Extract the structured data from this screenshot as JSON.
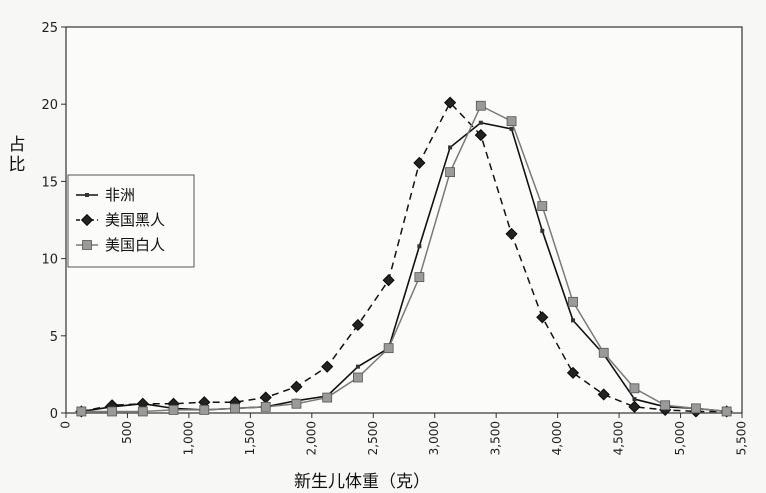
{
  "chart_data": {
    "type": "line",
    "title": "",
    "xlabel": "新生儿体重（克）",
    "ylabel": "占比",
    "xlim": [
      0,
      5500
    ],
    "ylim": [
      0,
      25
    ],
    "x_ticks": [
      0,
      500,
      1000,
      1500,
      2000,
      2500,
      3000,
      3500,
      4000,
      4500,
      5000,
      5500
    ],
    "x_tick_labels": [
      "0",
      "500",
      "1,000",
      "1,500",
      "2,000",
      "2,500",
      "3,000",
      "3,500",
      "4,000",
      "4,500",
      "5,000",
      "5,500"
    ],
    "y_ticks": [
      0,
      5,
      10,
      15,
      20,
      25
    ],
    "y_tick_labels": [
      "0",
      "5",
      "10",
      "15",
      "20",
      "25"
    ],
    "grid": false,
    "legend_position": "left",
    "series": [
      {
        "name": "非洲",
        "style": "solid-thin",
        "marker": "small-square",
        "color": "#333333",
        "x": [
          125,
          375,
          625,
          875,
          1125,
          1375,
          1625,
          1875,
          2125,
          2375,
          2625,
          2875,
          3125,
          3375,
          3625,
          3875,
          4125,
          4375,
          4625,
          4875,
          5125,
          5375
        ],
        "values": [
          0.1,
          0.4,
          0.6,
          0.3,
          0.2,
          0.3,
          0.4,
          0.8,
          1.1,
          3.0,
          4.2,
          10.8,
          17.2,
          18.8,
          18.4,
          11.8,
          6.0,
          3.8,
          0.9,
          0.4,
          0.3,
          0.1
        ]
      },
      {
        "name": "美国黑人",
        "style": "dashed",
        "marker": "diamond",
        "color": "#111111",
        "x": [
          125,
          375,
          625,
          875,
          1125,
          1375,
          1625,
          1875,
          2125,
          2375,
          2625,
          2875,
          3125,
          3375,
          3625,
          3875,
          4125,
          4375,
          4625,
          4875,
          5125,
          5375
        ],
        "values": [
          0.1,
          0.5,
          0.6,
          0.6,
          0.7,
          0.7,
          1.0,
          1.7,
          3.0,
          5.7,
          8.6,
          16.2,
          20.1,
          18.0,
          11.6,
          6.2,
          2.6,
          1.2,
          0.4,
          0.2,
          0.1,
          0.1
        ]
      },
      {
        "name": "美国白人",
        "style": "solid",
        "marker": "square",
        "color": "#888888",
        "x": [
          125,
          375,
          625,
          875,
          1125,
          1375,
          1625,
          1875,
          2125,
          2375,
          2625,
          2875,
          3125,
          3375,
          3625,
          3875,
          4125,
          4375,
          4625,
          4875,
          5125,
          5375
        ],
        "values": [
          0.1,
          0.1,
          0.1,
          0.2,
          0.2,
          0.3,
          0.4,
          0.6,
          1.0,
          2.3,
          4.2,
          8.8,
          15.6,
          19.9,
          18.9,
          13.4,
          7.2,
          3.9,
          1.6,
          0.5,
          0.3,
          0.1
        ]
      }
    ]
  }
}
